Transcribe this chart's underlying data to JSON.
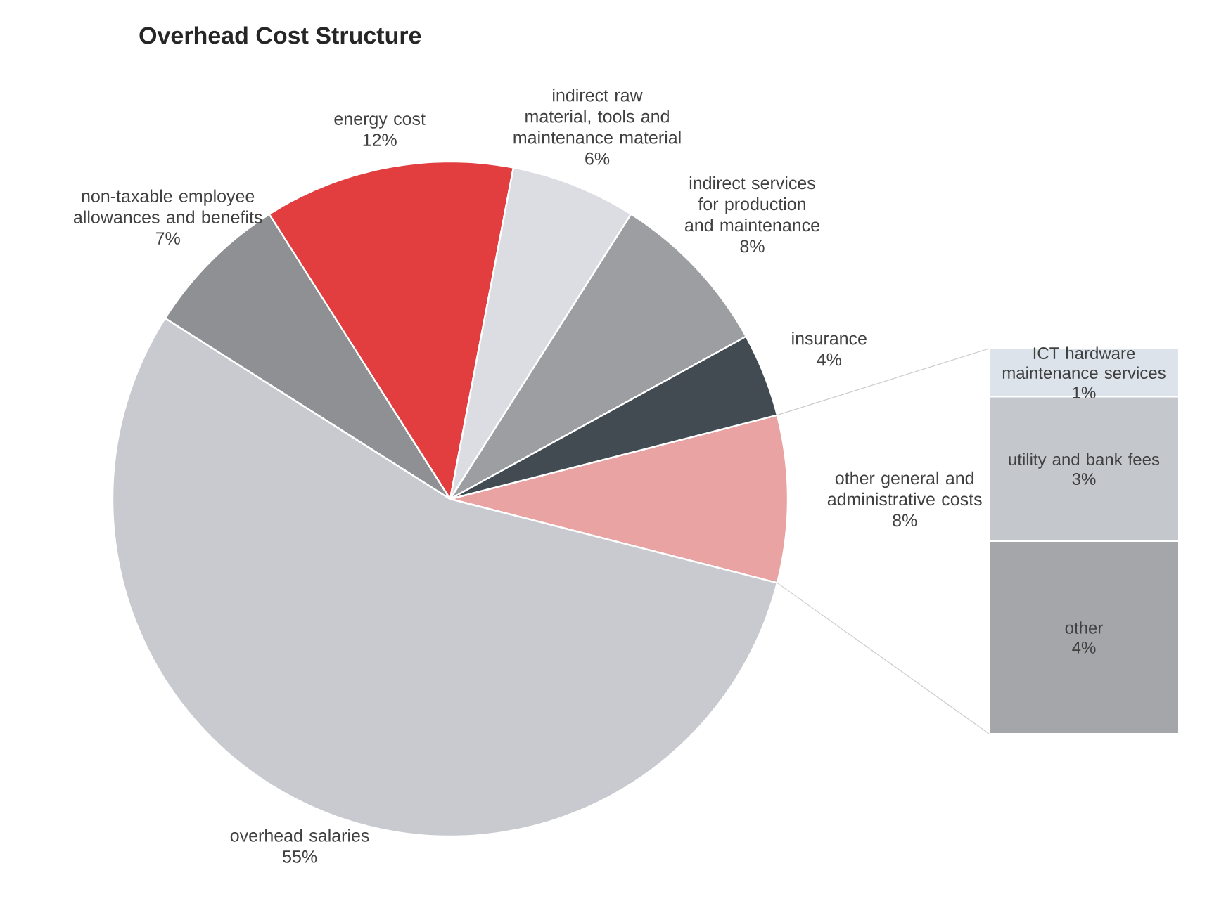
{
  "chart_data": [
    {
      "type": "pie",
      "title": "Overhead Cost Structure",
      "categories": [
        "other general and administrative costs",
        "overhead salaries",
        "non-taxable employee allowances and benefits",
        "energy cost",
        "indirect raw material, tools and maintenance material",
        "indirect services for production and maintenance",
        "insurance"
      ],
      "values": [
        8,
        55,
        7,
        12,
        6,
        8,
        4
      ],
      "value_labels": [
        "8%",
        "55%",
        "7%",
        "12%",
        "6%",
        "8%",
        "4%"
      ],
      "colors": [
        "#e9a3a3",
        "#c9cacf",
        "#8e9094",
        "#e23d3f",
        "#dcdde2",
        "#9c9ea1",
        "#414b51"
      ]
    },
    {
      "type": "bar",
      "stacked": true,
      "categories": [
        null
      ],
      "series": [
        {
          "name": "other",
          "color": "#a4a6a9",
          "values": [
            4
          ],
          "value_labels": [
            "4%"
          ]
        },
        {
          "name": "utility and bank fees",
          "color": "#c4c7cc",
          "values": [
            3
          ],
          "value_labels": [
            "3%"
          ]
        },
        {
          "name": "ICT hardware maintenance services",
          "color": "#dde3ea",
          "values": [
            1
          ],
          "value_labels": [
            "1%"
          ]
        }
      ]
    }
  ]
}
